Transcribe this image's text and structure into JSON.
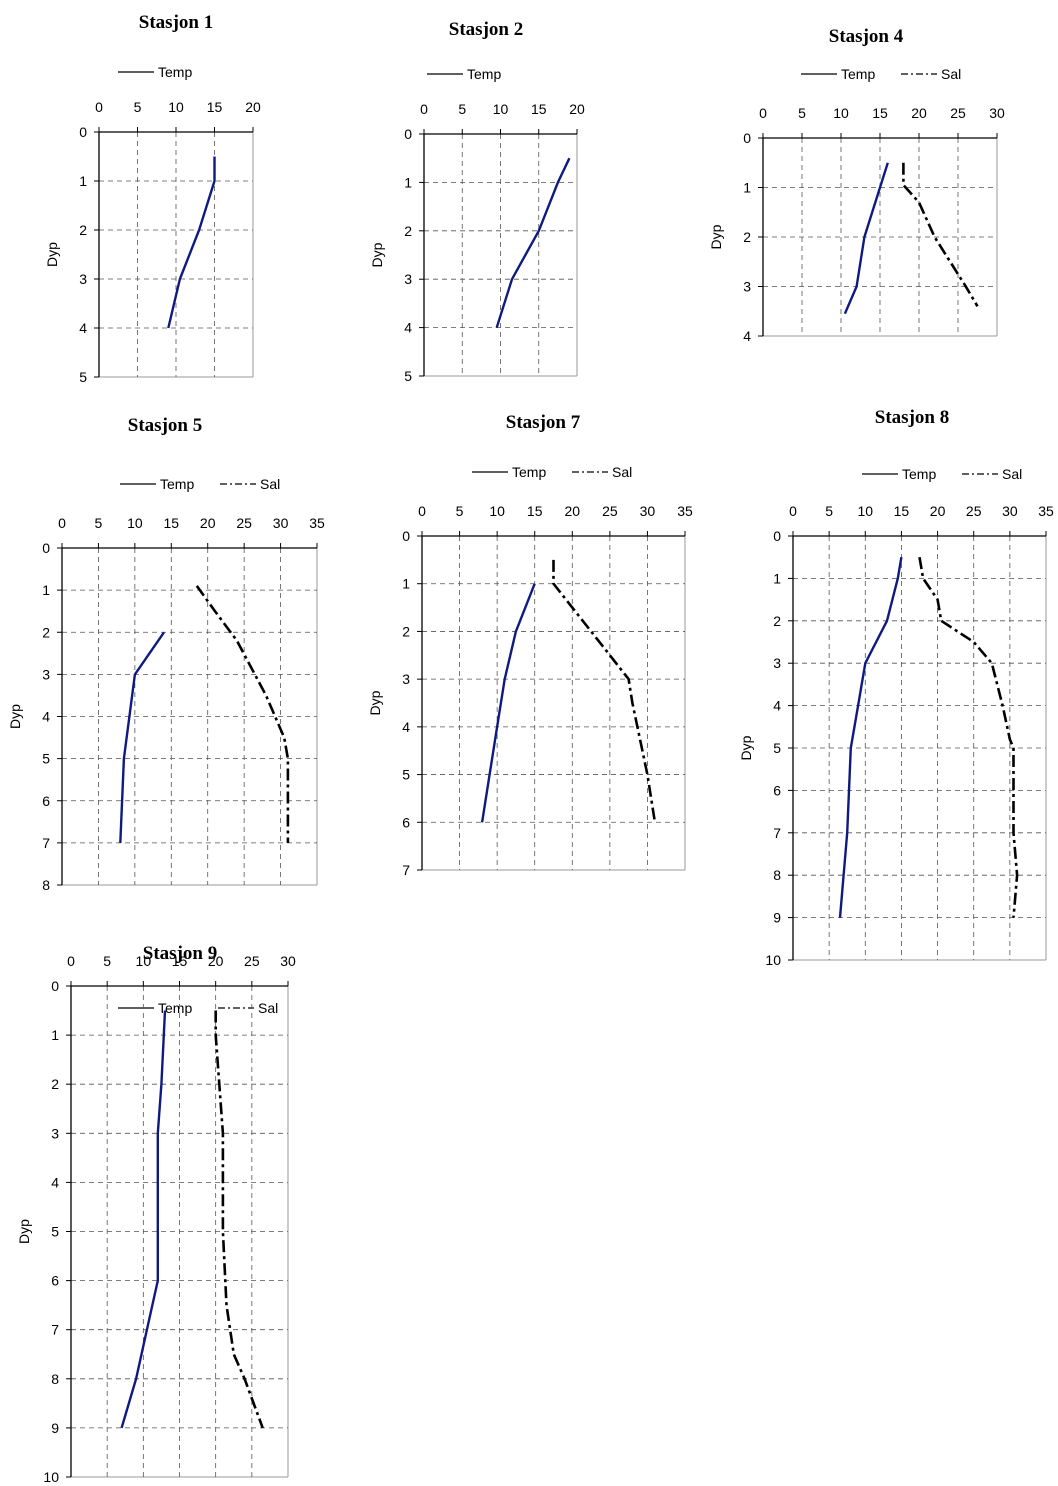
{
  "chart_data": [
    {
      "type": "line",
      "title": "Stasjon 1",
      "ylabel": "Dyp",
      "xlim": [
        0,
        20
      ],
      "xticks": [
        0,
        5,
        10,
        15,
        20
      ],
      "ylim": [
        0,
        5
      ],
      "yticks": [
        0,
        1,
        2,
        3,
        4,
        5
      ],
      "y_inverted": true,
      "x_axis_position": "top",
      "grid": true,
      "legend": "top",
      "series": [
        {
          "name": "Temp",
          "style": "solid",
          "points": [
            [
              15,
              0.5
            ],
            [
              15,
              1
            ],
            [
              13,
              2
            ],
            [
              10.5,
              3
            ],
            [
              9,
              4
            ]
          ]
        }
      ]
    },
    {
      "type": "line",
      "title": "Stasjon 2",
      "ylabel": "Dyp",
      "xlim": [
        0,
        20
      ],
      "xticks": [
        0,
        5,
        10,
        15,
        20
      ],
      "ylim": [
        0,
        5
      ],
      "yticks": [
        0,
        1,
        2,
        3,
        4,
        5
      ],
      "y_inverted": true,
      "x_axis_position": "top",
      "grid": true,
      "legend": "top",
      "series": [
        {
          "name": "Temp",
          "style": "solid",
          "points": [
            [
              19,
              0.5
            ],
            [
              17.5,
              1
            ],
            [
              15,
              2
            ],
            [
              11.5,
              3
            ],
            [
              9.5,
              4
            ]
          ]
        }
      ]
    },
    {
      "type": "line",
      "title": "Stasjon 4",
      "ylabel": "Dyp",
      "xlim": [
        0,
        30
      ],
      "xticks": [
        0,
        5,
        10,
        15,
        20,
        25,
        30
      ],
      "ylim": [
        0,
        4
      ],
      "yticks": [
        0,
        1,
        2,
        3,
        4
      ],
      "y_inverted": true,
      "x_axis_position": "top",
      "grid": true,
      "legend": "top",
      "series": [
        {
          "name": "Temp",
          "style": "solid",
          "points": [
            [
              16,
              0.5
            ],
            [
              15,
              1
            ],
            [
              13,
              2
            ],
            [
              12,
              3
            ],
            [
              10.5,
              3.55
            ]
          ]
        },
        {
          "name": "Sal",
          "style": "dashdot",
          "points": [
            [
              18,
              0.5
            ],
            [
              18,
              0.95
            ],
            [
              20,
              1.3
            ],
            [
              22,
              2
            ],
            [
              26,
              3
            ],
            [
              27.5,
              3.4
            ]
          ]
        }
      ]
    },
    {
      "type": "line",
      "title": "Stasjon 5",
      "ylabel": "Dyp",
      "xlim": [
        0,
        35
      ],
      "xticks": [
        0,
        5,
        10,
        15,
        20,
        25,
        30,
        35
      ],
      "ylim": [
        0,
        8
      ],
      "yticks": [
        0,
        1,
        2,
        3,
        4,
        5,
        6,
        7,
        8
      ],
      "y_inverted": true,
      "x_axis_position": "top",
      "grid": true,
      "legend": "top",
      "series": [
        {
          "name": "Temp",
          "style": "solid",
          "points": [
            [
              14,
              2
            ],
            [
              10,
              3
            ],
            [
              8.5,
              5
            ],
            [
              8,
              7
            ]
          ]
        },
        {
          "name": "Sal",
          "style": "dashdot",
          "points": [
            [
              18.5,
              0.9
            ],
            [
              21,
              1.5
            ],
            [
              24,
              2.2
            ],
            [
              28,
              3.5
            ],
            [
              30.5,
              4.5
            ],
            [
              31,
              5
            ],
            [
              31,
              7
            ]
          ]
        }
      ]
    },
    {
      "type": "line",
      "title": "Stasjon 7",
      "ylabel": "Dyp",
      "xlim": [
        0,
        35
      ],
      "xticks": [
        0,
        5,
        10,
        15,
        20,
        25,
        30,
        35
      ],
      "ylim": [
        0,
        7
      ],
      "yticks": [
        0,
        1,
        2,
        3,
        4,
        5,
        6,
        7
      ],
      "y_inverted": true,
      "x_axis_position": "top",
      "grid": true,
      "legend": "top",
      "series": [
        {
          "name": "Temp",
          "style": "solid",
          "points": [
            [
              15,
              1
            ],
            [
              12.5,
              2
            ],
            [
              11,
              3
            ],
            [
              10,
              4
            ],
            [
              9,
              5
            ],
            [
              8,
              6
            ]
          ]
        },
        {
          "name": "Sal",
          "style": "dashdot",
          "points": [
            [
              17.5,
              0.5
            ],
            [
              17.5,
              1
            ],
            [
              20,
              1.5
            ],
            [
              22.5,
              2
            ],
            [
              27.5,
              3
            ],
            [
              28,
              3.5
            ],
            [
              30,
              5
            ],
            [
              31,
              6
            ]
          ]
        }
      ]
    },
    {
      "type": "line",
      "title": "Stasjon 8",
      "ylabel": "Dyp",
      "xlim": [
        0,
        35
      ],
      "xticks": [
        0,
        5,
        10,
        15,
        20,
        25,
        30,
        35
      ],
      "ylim": [
        0,
        10
      ],
      "yticks": [
        0,
        1,
        2,
        3,
        4,
        5,
        6,
        7,
        8,
        9,
        10
      ],
      "y_inverted": true,
      "x_axis_position": "top",
      "grid": true,
      "legend": "top",
      "series": [
        {
          "name": "Temp",
          "style": "solid",
          "points": [
            [
              15,
              0.5
            ],
            [
              14.5,
              1
            ],
            [
              13,
              2
            ],
            [
              10,
              3
            ],
            [
              9,
              4
            ],
            [
              8,
              5
            ],
            [
              7.5,
              7
            ],
            [
              6.5,
              9
            ]
          ]
        },
        {
          "name": "Sal",
          "style": "dashdot",
          "points": [
            [
              17.5,
              0.5
            ],
            [
              18,
              1
            ],
            [
              20,
              1.5
            ],
            [
              20.5,
              2
            ],
            [
              25,
              2.5
            ],
            [
              27.5,
              3
            ],
            [
              29,
              4
            ],
            [
              30,
              4.8
            ],
            [
              30.5,
              5
            ],
            [
              30.5,
              7
            ],
            [
              31,
              8
            ],
            [
              30.5,
              9
            ]
          ]
        }
      ]
    },
    {
      "type": "line",
      "title": "Stasjon 9",
      "ylabel": "Dyp",
      "xlim": [
        0,
        30
      ],
      "xticks": [
        0,
        5,
        10,
        15,
        20,
        25,
        30
      ],
      "ylim": [
        0,
        10
      ],
      "yticks": [
        0,
        1,
        2,
        3,
        4,
        5,
        6,
        7,
        8,
        9,
        10
      ],
      "y_inverted": true,
      "x_axis_position": "top",
      "grid": true,
      "legend": "top",
      "series": [
        {
          "name": "Temp",
          "style": "solid",
          "points": [
            [
              13,
              0.5
            ],
            [
              12.5,
              2
            ],
            [
              12,
              3
            ],
            [
              12,
              6
            ],
            [
              10.5,
              7
            ],
            [
              9,
              8
            ],
            [
              7,
              9
            ]
          ]
        },
        {
          "name": "Sal",
          "style": "dashdot",
          "points": [
            [
              20,
              0.5
            ],
            [
              20,
              1
            ],
            [
              20.5,
              2
            ],
            [
              21,
              3
            ],
            [
              21,
              5
            ],
            [
              21.5,
              6.5
            ],
            [
              22.5,
              7.5
            ],
            [
              24,
              8
            ],
            [
              26.5,
              9
            ]
          ]
        }
      ]
    }
  ],
  "colors": {
    "temp": "#0f1a80",
    "sal": "#000000",
    "grid": "#555555",
    "axis": "#999999"
  }
}
